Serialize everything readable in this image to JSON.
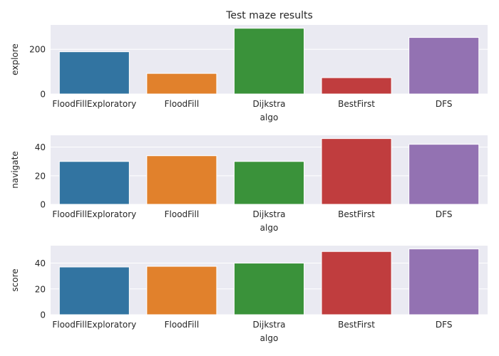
{
  "figure": {
    "title": "Test maze results"
  },
  "chart_data": [
    {
      "type": "bar",
      "categories": [
        "FloodFillExploratory",
        "FloodFill",
        "Dijkstra",
        "BestFirst",
        "DFS"
      ],
      "values": [
        189,
        92,
        294,
        73,
        253
      ],
      "xlabel": "algo",
      "ylabel": "explore",
      "ylim": [
        0,
        309
      ],
      "yticks": [
        0,
        200
      ],
      "grid": true,
      "colors": [
        "#3274a1",
        "#e1812c",
        "#3a923a",
        "#c03d3e",
        "#9372b2"
      ]
    },
    {
      "type": "bar",
      "categories": [
        "FloodFillExploratory",
        "FloodFill",
        "Dijkstra",
        "BestFirst",
        "DFS"
      ],
      "values": [
        30,
        34,
        30,
        46,
        42
      ],
      "xlabel": "algo",
      "ylabel": "navigate",
      "ylim": [
        0,
        48.3
      ],
      "yticks": [
        0,
        20,
        40
      ],
      "grid": true,
      "colors": [
        "#3274a1",
        "#e1812c",
        "#3a923a",
        "#c03d3e",
        "#9372b2"
      ]
    },
    {
      "type": "bar",
      "categories": [
        "FloodFillExploratory",
        "FloodFill",
        "Dijkstra",
        "BestFirst",
        "DFS"
      ],
      "values": [
        37,
        37.5,
        40,
        49,
        51
      ],
      "xlabel": "algo",
      "ylabel": "score",
      "ylim": [
        0,
        53.55
      ],
      "yticks": [
        0,
        20,
        40
      ],
      "grid": true,
      "colors": [
        "#3274a1",
        "#e1812c",
        "#3a923a",
        "#c03d3e",
        "#9372b2"
      ]
    }
  ]
}
